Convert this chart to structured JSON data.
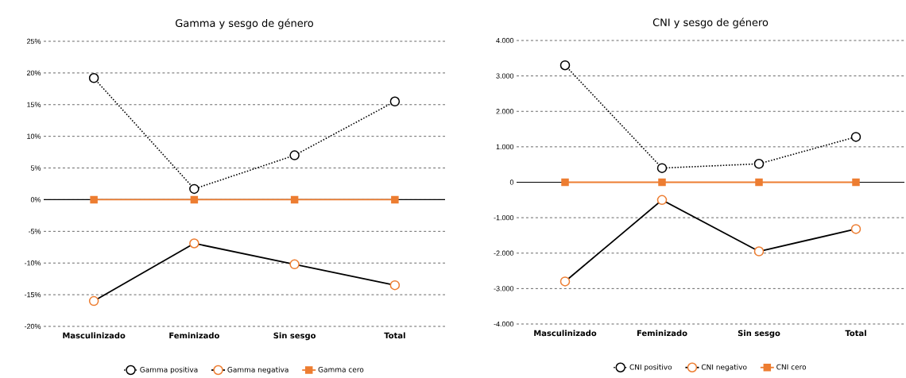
{
  "chart_data": [
    {
      "type": "line",
      "title": "Gamma y sesgo de género",
      "categories": [
        "Masculinizado",
        "Feminizado",
        "Sin sesgo",
        "Total"
      ],
      "series": [
        {
          "name": "Gamma positiva",
          "color": "#000000",
          "values": [
            19.2,
            1.7,
            7.0,
            15.5
          ],
          "marker": "circle",
          "line_style": "dotted"
        },
        {
          "name": "Gamma negativa",
          "color": "#000000",
          "colors": [
            "#ed7d31",
            "#ed7d31",
            "#ed7d31",
            "#ed7d31"
          ],
          "values": [
            -16.0,
            -6.9,
            -10.2,
            -13.5
          ],
          "marker": "circle",
          "line_style": "solid"
        },
        {
          "name": "Gamma cero",
          "color": "#ed7d31",
          "values": [
            0,
            0,
            0,
            0
          ],
          "marker": "square",
          "line_style": "solid"
        }
      ],
      "ylim": [
        -20,
        25
      ],
      "yticks": [
        {
          "value": -20,
          "label": "-20%"
        },
        {
          "value": -15,
          "label": "-15%"
        },
        {
          "value": -10,
          "label": "-10%"
        },
        {
          "value": -5,
          "label": "-5%"
        },
        {
          "value": 0,
          "label": "0%"
        },
        {
          "value": 5,
          "label": "5%"
        },
        {
          "value": 10,
          "label": "10%"
        },
        {
          "value": 15,
          "label": "15%"
        },
        {
          "value": 20,
          "label": "20%"
        },
        {
          "value": 25,
          "label": "25%"
        }
      ],
      "grid": "y",
      "legend": "bottom"
    },
    {
      "type": "line",
      "title": "CNI y sesgo de género",
      "categories": [
        "Masculinizado",
        "Feminizado",
        "Sin sesgo",
        "Total"
      ],
      "series": [
        {
          "name": "CNI positivo",
          "color": "#000000",
          "values": [
            3300,
            400,
            520,
            1280
          ],
          "marker": "circle",
          "line_style": "dotted"
        },
        {
          "name": "CNI negativo",
          "color": "#000000",
          "colors": [
            "#ed7d31",
            "#ed7d31",
            "#ed7d31",
            "#ed7d31"
          ],
          "values": [
            -2800,
            -500,
            -1950,
            -1320
          ],
          "marker": "circle",
          "line_style": "solid"
        },
        {
          "name": "CNI cero",
          "color": "#ed7d31",
          "values": [
            0,
            0,
            0,
            0
          ],
          "marker": "square",
          "line_style": "solid"
        }
      ],
      "ylim": [
        -4000,
        4000
      ],
      "yticks": [
        {
          "value": -4000,
          "label": "-4.000"
        },
        {
          "value": -3000,
          "label": "-3.000"
        },
        {
          "value": -2000,
          "label": "-2.000"
        },
        {
          "value": -1000,
          "label": "-1.000"
        },
        0,
        {
          "value": 1000,
          "label": "1.000"
        },
        {
          "value": 2000,
          "label": "2.000"
        },
        {
          "value": 3000,
          "label": "3.000"
        },
        {
          "value": 4000,
          "label": "4.000"
        }
      ],
      "grid": "y",
      "legend": "bottom"
    }
  ]
}
